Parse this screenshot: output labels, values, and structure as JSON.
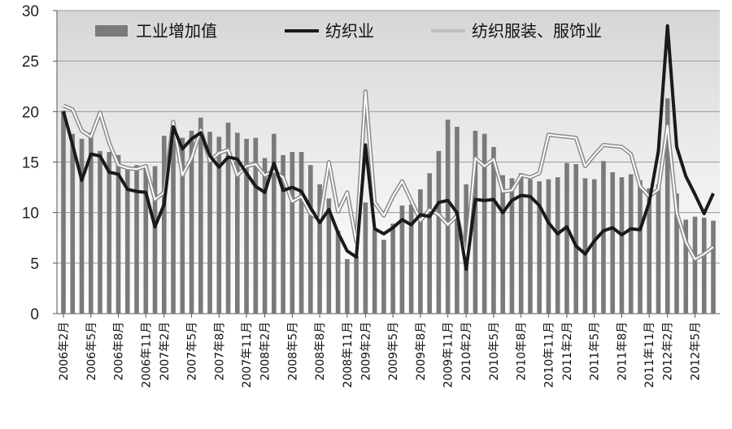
{
  "chart_data": {
    "type": "bar+line",
    "ylim": [
      0,
      30
    ],
    "yticks": [
      0,
      5,
      10,
      15,
      20,
      25,
      30
    ],
    "grid": true,
    "legend_position": "top",
    "x": [
      "2006-02",
      "2006-03",
      "2006-04",
      "2006-05",
      "2006-06",
      "2006-07",
      "2006-08",
      "2006-09",
      "2006-10",
      "2006-11",
      "2006-12",
      "2007-02",
      "2007-03",
      "2007-04",
      "2007-05",
      "2007-06",
      "2007-07",
      "2007-08",
      "2007-09",
      "2007-10",
      "2007-11",
      "2007-12",
      "2008-02",
      "2008-03",
      "2008-04",
      "2008-05",
      "2008-06",
      "2008-07",
      "2008-08",
      "2008-09",
      "2008-10",
      "2008-11",
      "2008-12",
      "2009-02",
      "2009-03",
      "2009-04",
      "2009-05",
      "2009-06",
      "2009-07",
      "2009-08",
      "2009-09",
      "2009-10",
      "2009-11",
      "2009-12",
      "2010-02",
      "2010-03",
      "2010-04",
      "2010-05",
      "2010-06",
      "2010-07",
      "2010-08",
      "2010-09",
      "2010-10",
      "2010-11",
      "2010-12",
      "2011-02",
      "2011-03",
      "2011-04",
      "2011-05",
      "2011-06",
      "2011-07",
      "2011-08",
      "2011-09",
      "2011-10",
      "2011-11",
      "2011-12",
      "2012-02",
      "2012-03",
      "2012-04",
      "2012-05",
      "2012-06",
      "2012-07"
    ],
    "x_tick_labels": [
      "2006年2月",
      "2006年5月",
      "2006年8月",
      "2006年11月",
      "2007年2月",
      "2007年5月",
      "2007年8月",
      "2007年11月",
      "2008年2月",
      "2008年5月",
      "2008年8月",
      "2008年11月",
      "2009年2月",
      "2009年5月",
      "2009年8月",
      "2009年11月",
      "2010年2月",
      "2010年5月",
      "2010年8月",
      "2010年11月",
      "2011年2月",
      "2011年5月",
      "2011年8月",
      "2011年11月",
      "2012年2月",
      "2012年5月"
    ],
    "x_tick_indices": [
      0,
      3,
      6,
      9,
      11,
      14,
      17,
      20,
      22,
      25,
      28,
      31,
      33,
      36,
      39,
      42,
      44,
      47,
      50,
      53,
      55,
      58,
      61,
      64,
      66,
      69
    ],
    "series": [
      {
        "name": "工业增加值",
        "type": "bar",
        "color": "#7a7a7a",
        "values": [
          20.1,
          17.8,
          17.3,
          17.9,
          16.1,
          16.0,
          15.7,
          14.5,
          14.7,
          14.7,
          14.6,
          17.6,
          17.6,
          17.4,
          18.1,
          19.4,
          18.0,
          17.5,
          18.9,
          17.9,
          17.3,
          17.4,
          15.4,
          17.8,
          15.7,
          16.0,
          16.0,
          14.7,
          12.8,
          11.4,
          8.2,
          5.4,
          5.7,
          11.0,
          8.3,
          7.3,
          8.9,
          10.7,
          10.8,
          12.3,
          13.9,
          16.1,
          19.2,
          18.5,
          12.8,
          18.1,
          17.8,
          16.5,
          13.7,
          13.4,
          13.9,
          13.3,
          13.1,
          13.3,
          13.5,
          14.9,
          14.8,
          13.4,
          13.3,
          15.1,
          14.0,
          13.5,
          13.8,
          13.2,
          12.4,
          12.8,
          21.3,
          11.9,
          9.3,
          9.6,
          9.5,
          9.2
        ]
      },
      {
        "name": "纺织业",
        "type": "line",
        "color": "#1a1a1a",
        "values": [
          20.0,
          16.7,
          13.2,
          15.8,
          15.6,
          14.0,
          13.8,
          12.3,
          12.1,
          12.0,
          8.6,
          10.8,
          18.5,
          16.3,
          17.3,
          17.9,
          15.6,
          14.5,
          15.5,
          15.3,
          13.9,
          12.6,
          12.0,
          14.9,
          12.2,
          12.5,
          12.1,
          10.5,
          9.0,
          10.3,
          8.0,
          6.2,
          5.6,
          16.7,
          8.4,
          7.9,
          8.5,
          9.3,
          8.8,
          9.8,
          9.6,
          11.0,
          11.2,
          10.0,
          4.4,
          11.3,
          11.2,
          11.3,
          10.0,
          11.2,
          11.7,
          11.6,
          10.7,
          9.0,
          7.9,
          8.6,
          6.7,
          5.9,
          7.2,
          8.2,
          8.5,
          7.8,
          8.4,
          8.3,
          11.0,
          16.1,
          28.5,
          16.5,
          13.6,
          11.8,
          9.9,
          11.9
        ]
      },
      {
        "name": "纺织服装、服饰业",
        "type": "line",
        "color": "#c0c0c0",
        "values": [
          20.6,
          20.2,
          18.1,
          17.5,
          19.9,
          16.9,
          14.7,
          14.4,
          14.3,
          14.6,
          11.3,
          12.0,
          19.0,
          13.7,
          15.4,
          18.2,
          15.1,
          15.9,
          16.2,
          13.7,
          14.6,
          14.8,
          13.7,
          14.1,
          13.5,
          11.1,
          11.6,
          9.9,
          9.3,
          15.0,
          10.1,
          12.0,
          7.1,
          22.0,
          11.0,
          9.7,
          11.6,
          13.1,
          11.2,
          9.2,
          10.3,
          9.8,
          8.8,
          9.7,
          5.7,
          15.4,
          14.6,
          15.3,
          12.1,
          12.2,
          13.7,
          13.5,
          13.9,
          17.7,
          17.6,
          17.5,
          17.4,
          14.6,
          15.7,
          16.7,
          16.6,
          16.5,
          15.8,
          12.6,
          11.6,
          12.3,
          18.6,
          10.0,
          7.1,
          5.4,
          5.9,
          6.6
        ]
      }
    ]
  }
}
